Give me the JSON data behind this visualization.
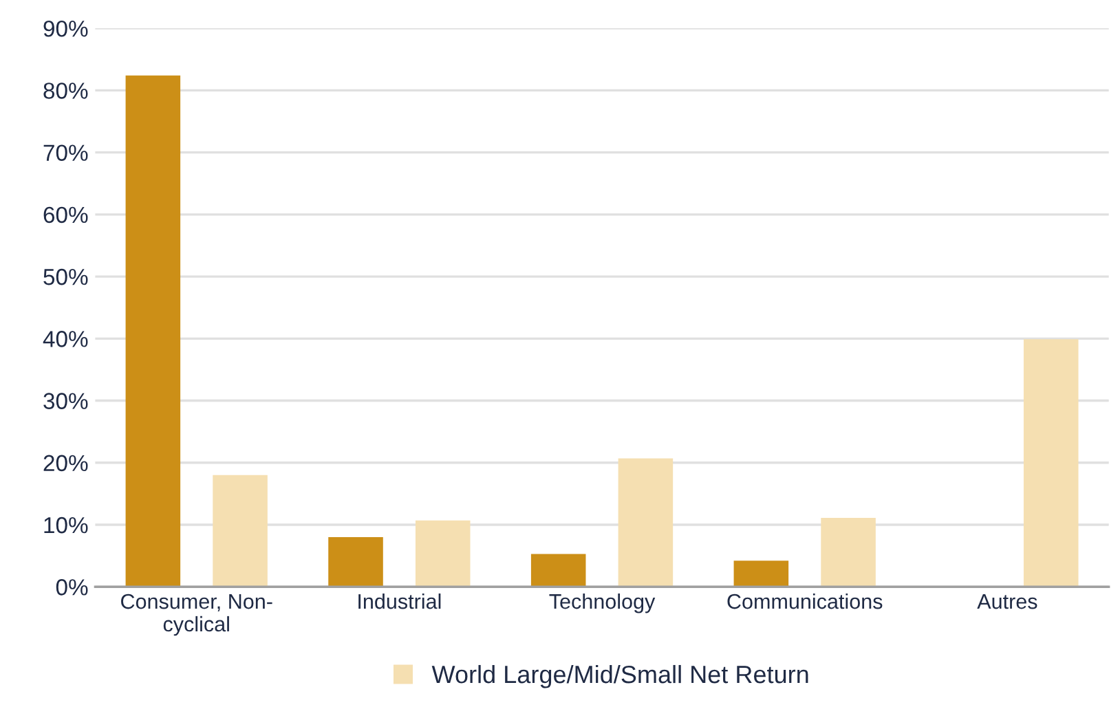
{
  "chart_data": {
    "type": "bar",
    "categories": [
      "Consumer, Non-\ncyclical",
      "Industrial",
      "Technology",
      "Communications",
      "Autres"
    ],
    "series": [
      {
        "color": "#cc8f17",
        "values": [
          82.4,
          8.0,
          5.3,
          4.2,
          null
        ]
      },
      {
        "name": "World Large/Mid/Small Net Return",
        "color": "#f5dfb1",
        "values": [
          18.0,
          10.7,
          20.7,
          11.1,
          39.9
        ]
      }
    ],
    "ylim": [
      0,
      90
    ],
    "yticks": [
      {
        "value": 0,
        "label": "0%"
      },
      {
        "value": 10,
        "label": "10%"
      },
      {
        "value": 20,
        "label": "20%"
      },
      {
        "value": 30,
        "label": "30%"
      },
      {
        "value": 40,
        "label": "40%"
      },
      {
        "value": 50,
        "label": "50%"
      },
      {
        "value": 60,
        "label": "60%"
      },
      {
        "value": 70,
        "label": "70%"
      },
      {
        "value": 80,
        "label": "80%"
      },
      {
        "value": 90,
        "label": "90%"
      }
    ],
    "grid": "y",
    "legend": "bottom"
  }
}
